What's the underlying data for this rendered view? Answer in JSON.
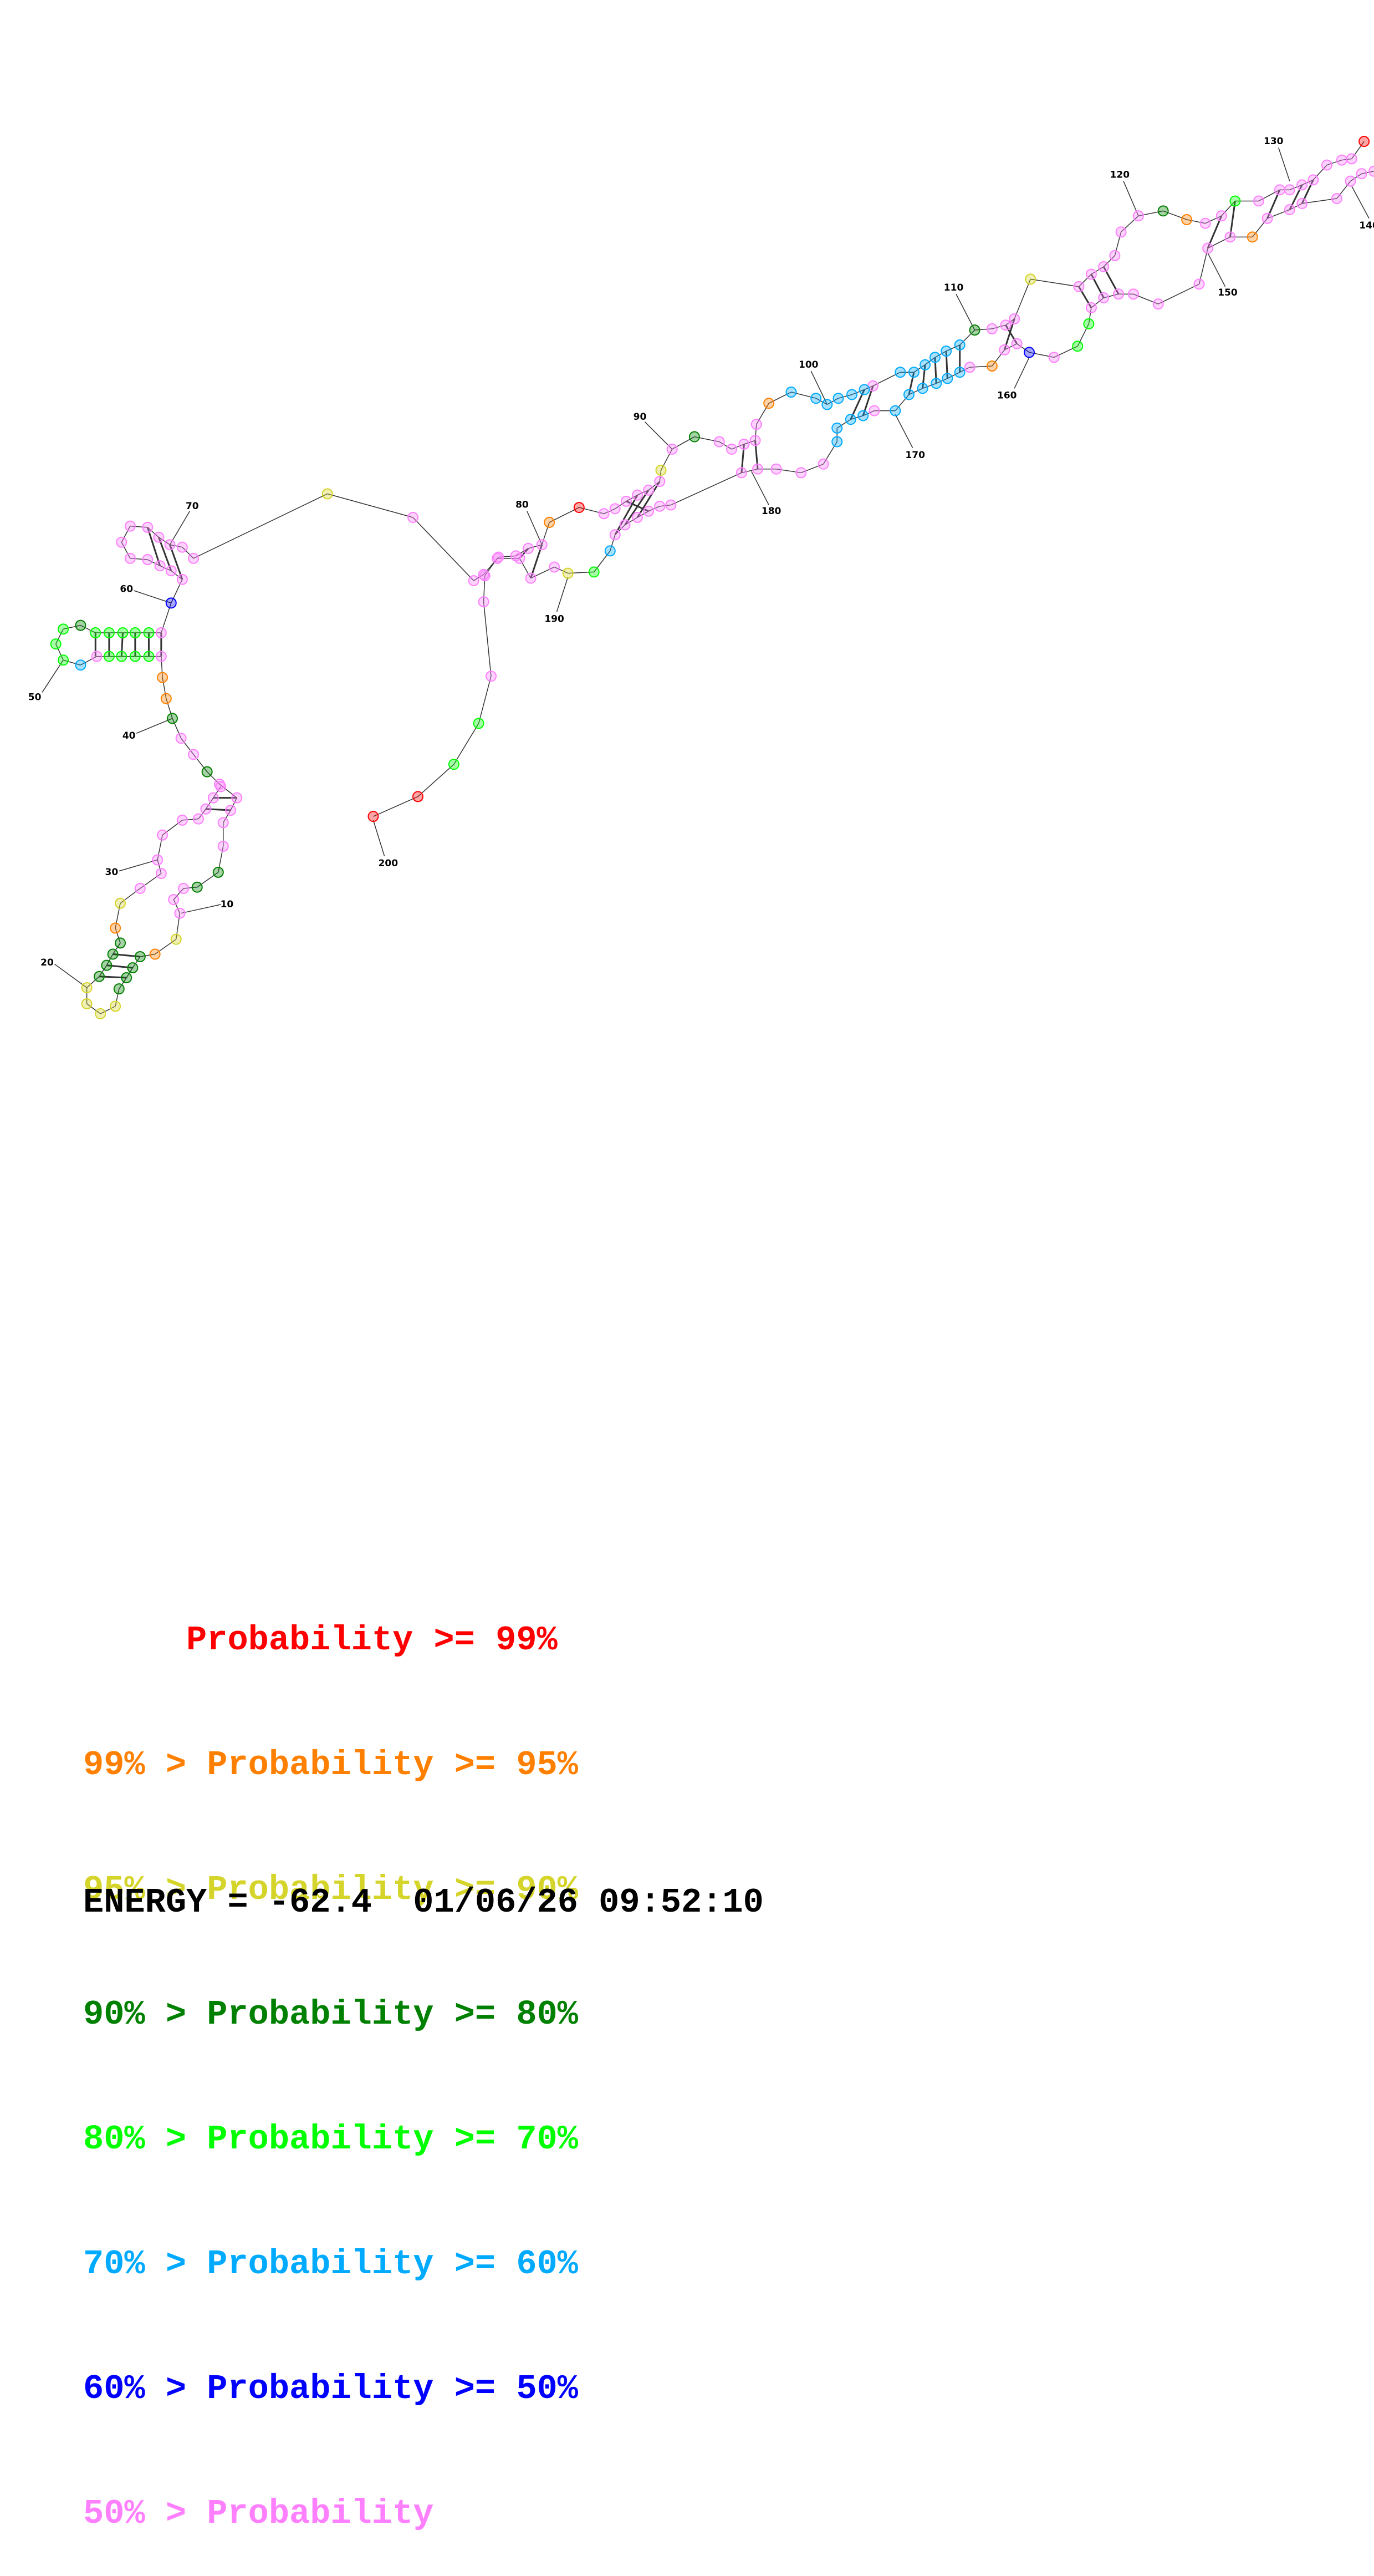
{
  "structure": {
    "position_labels": [
      "10",
      "20",
      "30",
      "40",
      "50",
      "60",
      "70",
      "80",
      "90",
      "100",
      "110",
      "120",
      "130",
      "140",
      "150",
      "160",
      "170",
      "180",
      "190",
      "200"
    ]
  },
  "colors": {
    "p99": "#ff0000",
    "p95": "#ff8000",
    "p90": "#d4d42a",
    "p80": "#008000",
    "p70": "#00ff00",
    "p60": "#00aaff",
    "p50": "#0000ff",
    "low": "#ff80ff"
  },
  "legend": [
    {
      "text": "     Probability >= 99%",
      "color_key": "p99"
    },
    {
      "text": "99% > Probability >= 95%",
      "color_key": "p95"
    },
    {
      "text": "95% > Probability >= 90%",
      "color_key": "p90"
    },
    {
      "text": "90% > Probability >= 80%",
      "color_key": "p80"
    },
    {
      "text": "80% > Probability >= 70%",
      "color_key": "p70"
    },
    {
      "text": "70% > Probability >= 60%",
      "color_key": "p60"
    },
    {
      "text": "60% > Probability >= 50%",
      "color_key": "p50"
    },
    {
      "text": "50% > Probability",
      "color_key": "low"
    }
  ],
  "footer": {
    "energy": "ENERGY = -62.4  01/06/26 09:52:10"
  }
}
